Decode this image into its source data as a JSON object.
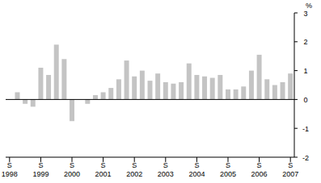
{
  "chart_data": {
    "type": "bar",
    "y_label": "%",
    "categories": [
      "S 1998",
      null,
      null,
      null,
      "S 1999",
      null,
      null,
      null,
      "S 2000",
      null,
      null,
      null,
      "S 2001",
      null,
      null,
      null,
      "S 2002",
      null,
      null,
      null,
      "S 2003",
      null,
      null,
      null,
      "S 2004",
      null,
      null,
      null,
      "S 2005",
      null,
      null,
      null,
      "S 2006",
      null,
      null,
      null,
      "S 2007"
    ],
    "values": [
      0,
      0.25,
      -0.15,
      -0.25,
      1.1,
      0.85,
      1.9,
      1.4,
      -0.75,
      0.0,
      -0.15,
      0.15,
      0.25,
      0.4,
      0.7,
      1.35,
      0.8,
      1.0,
      0.65,
      0.9,
      0.6,
      0.55,
      0.6,
      1.25,
      0.85,
      0.8,
      0.75,
      0.85,
      0.35,
      0.35,
      0.45,
      1.0,
      1.55,
      0.7,
      0.5,
      0.6,
      0.9
    ],
    "color": "#c4c4c4",
    "ylim": [
      -2,
      3
    ],
    "yticks": [
      -2,
      -1,
      0,
      1,
      2,
      3
    ],
    "grid": false
  }
}
